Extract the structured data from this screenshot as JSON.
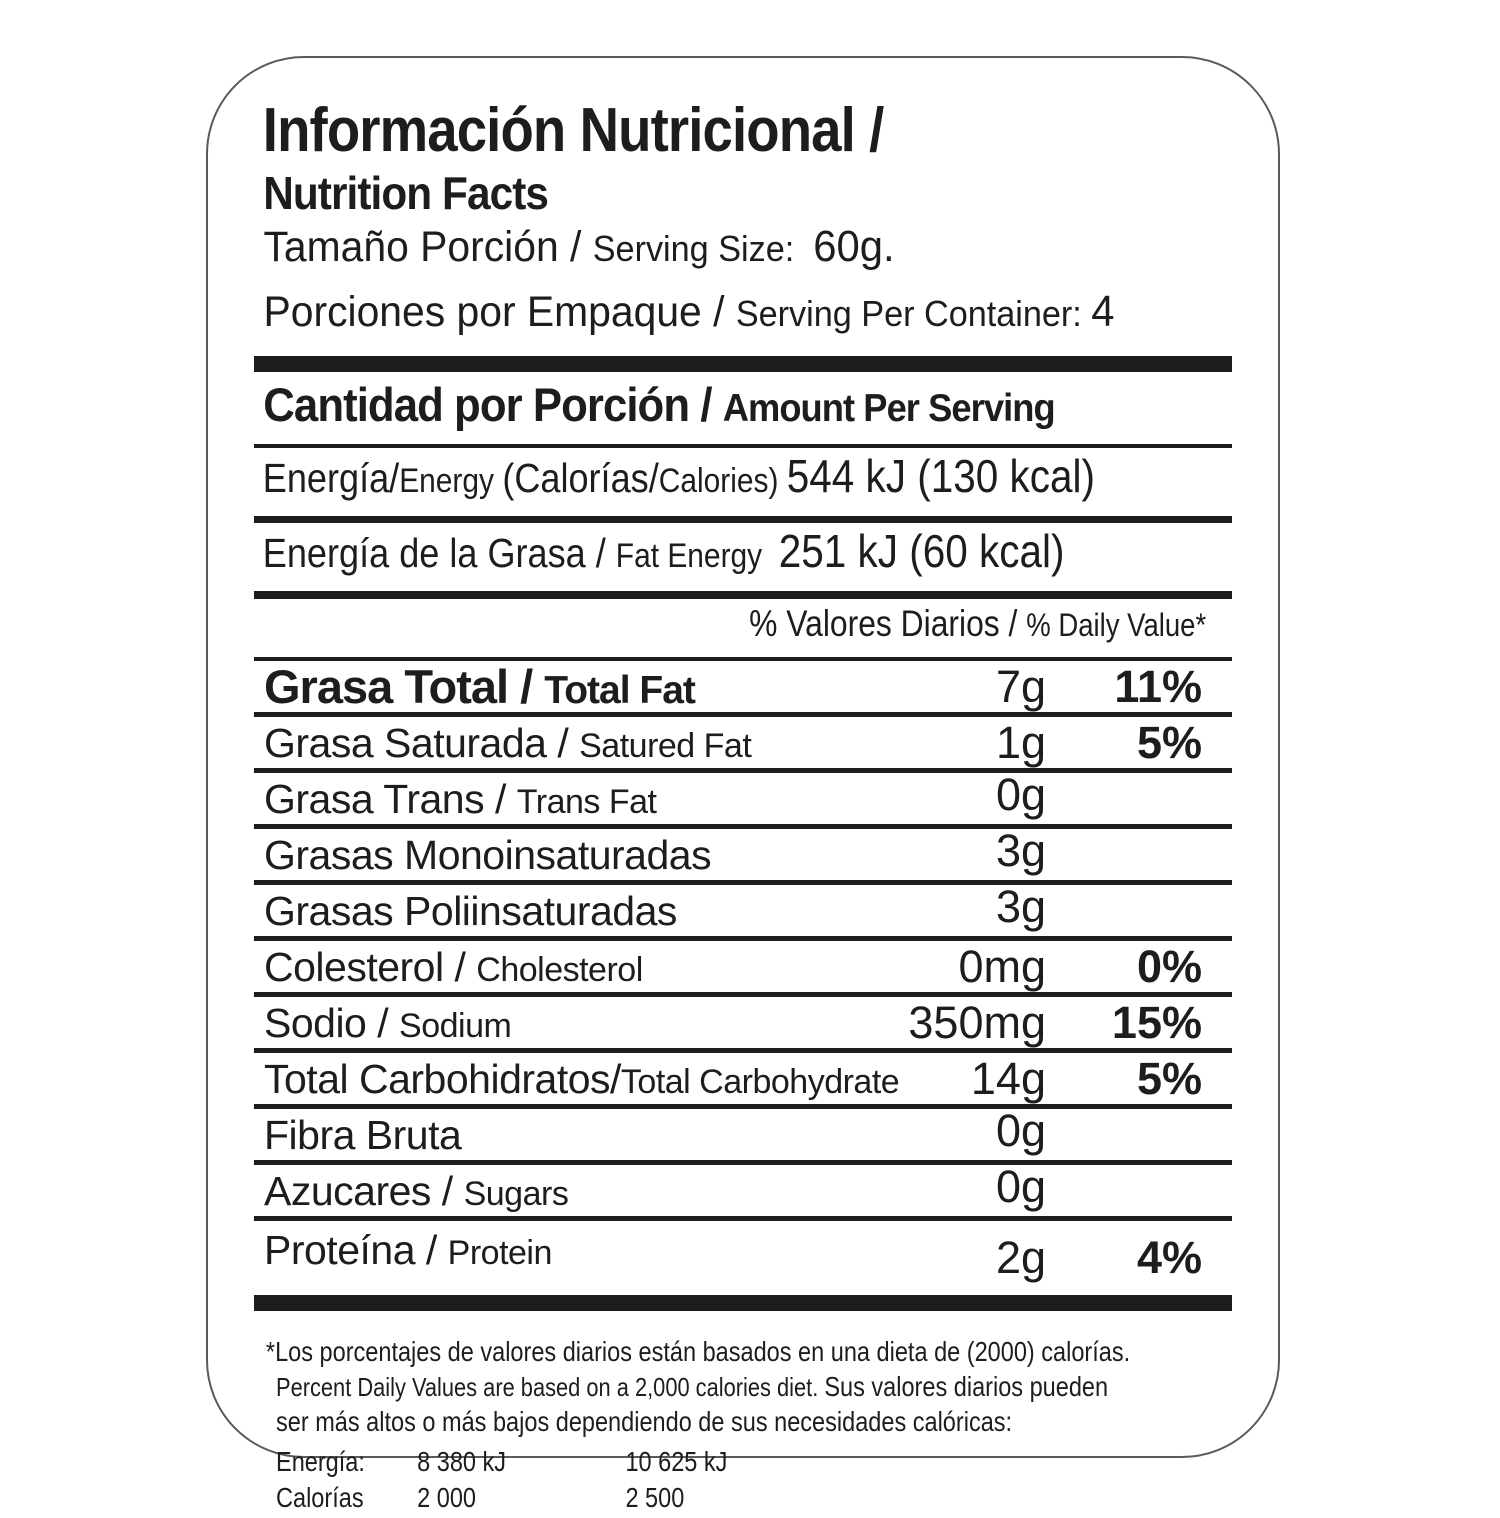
{
  "colors": {
    "ink": "#1e1c1c",
    "border": "#5a5a5a",
    "background": "#ffffff"
  },
  "label": {
    "header": {
      "title_es": "Información Nutricional /",
      "title_en": "Nutrition Facts",
      "serving_size": {
        "segments": [
          {
            "c": "es",
            "t": "Tamaño Porción / "
          },
          {
            "c": "en",
            "t": "Serving Size:  "
          },
          {
            "c": "val",
            "t": "60g."
          }
        ]
      },
      "servings_per_container": {
        "segments": [
          {
            "c": "es",
            "t": "Porciones por Empaque / "
          },
          {
            "c": "en",
            "t": "Serving Per Container: "
          },
          {
            "c": "val",
            "t": "4"
          }
        ]
      }
    },
    "amount_heading": {
      "segments": [
        {
          "c": "es-b",
          "t": "Cantidad por Porción / "
        },
        {
          "c": "en-b",
          "t": "Amount Per Serving"
        }
      ]
    },
    "energy_rows": [
      {
        "segments": [
          {
            "c": "es",
            "t": "Energía/"
          },
          {
            "c": "en",
            "t": "Energy "
          },
          {
            "c": "es",
            "t": "(Calorías/"
          },
          {
            "c": "en",
            "t": "Calories) "
          },
          {
            "c": "val",
            "t": "544 kJ (130 kcal)"
          }
        ]
      },
      {
        "segments": [
          {
            "c": "es",
            "t": "Energía de la Grasa / "
          },
          {
            "c": "en",
            "t": "Fat Energy  "
          },
          {
            "c": "val",
            "t": "251 kJ (60 kcal)"
          }
        ]
      }
    ],
    "daily_value_heading": {
      "segments": [
        {
          "c": "es",
          "t": "% Valores Diarios / "
        },
        {
          "c": "en",
          "t": "% Daily Value*"
        }
      ]
    },
    "nutrient_rows": [
      {
        "es": "Grasa Total / ",
        "en": "Total Fat",
        "amount": "7g",
        "pct": "11%",
        "bold": true
      },
      {
        "es": "Grasa Saturada / ",
        "en": "Satured Fat",
        "amount": "1g",
        "pct": "5%",
        "bold": false
      },
      {
        "es": "Grasa Trans / ",
        "en": "Trans Fat",
        "amount": "0g",
        "pct": "",
        "bold": false
      },
      {
        "es": "Grasas Monoinsaturadas",
        "en": "",
        "amount": "3g",
        "pct": "",
        "bold": false
      },
      {
        "es": "Grasas Poliinsaturadas",
        "en": "",
        "amount": "3g",
        "pct": "",
        "bold": false
      },
      {
        "es": "Colesterol / ",
        "en": "Cholesterol",
        "amount": "0mg",
        "pct": "0%",
        "bold": false
      },
      {
        "es": "Sodio / ",
        "en": "Sodium",
        "amount": "350mg",
        "pct": "15%",
        "bold": false
      },
      {
        "es": "Total Carbohidratos/",
        "en": "Total Carbohydrate",
        "amount": "14g",
        "pct": "5%",
        "bold": false
      },
      {
        "es": "Fibra Bruta",
        "en": "",
        "amount": "0g",
        "pct": "",
        "bold": false
      },
      {
        "es": "Azucares / ",
        "en": "Sugars",
        "amount": "0g",
        "pct": "",
        "bold": false
      },
      {
        "es": "Proteína / ",
        "en": "Protein",
        "amount": "2g",
        "pct": "4%",
        "bold": false
      }
    ],
    "footnote": {
      "lines": [
        {
          "segments": [
            {
              "c": "fn-es",
              "t": "*Los porcentajes de valores diarios están basados en una dieta de (2000) calorías."
            }
          ]
        },
        {
          "segments": [
            {
              "c": "fn-en",
              "t": "Percent Daily Values are based on a 2,000 calories diet. "
            },
            {
              "c": "fn-es",
              "t": "Sus valores diarios pueden"
            }
          ]
        },
        {
          "segments": [
            {
              "c": "fn-es",
              "t": "ser más altos o más bajos dependiendo de sus necesidades calóricas:"
            }
          ]
        }
      ],
      "table": [
        [
          "Energía:",
          "8 380 kJ",
          "10 625 kJ"
        ],
        [
          "Calorías",
          "2 000",
          "2 500"
        ]
      ]
    }
  }
}
